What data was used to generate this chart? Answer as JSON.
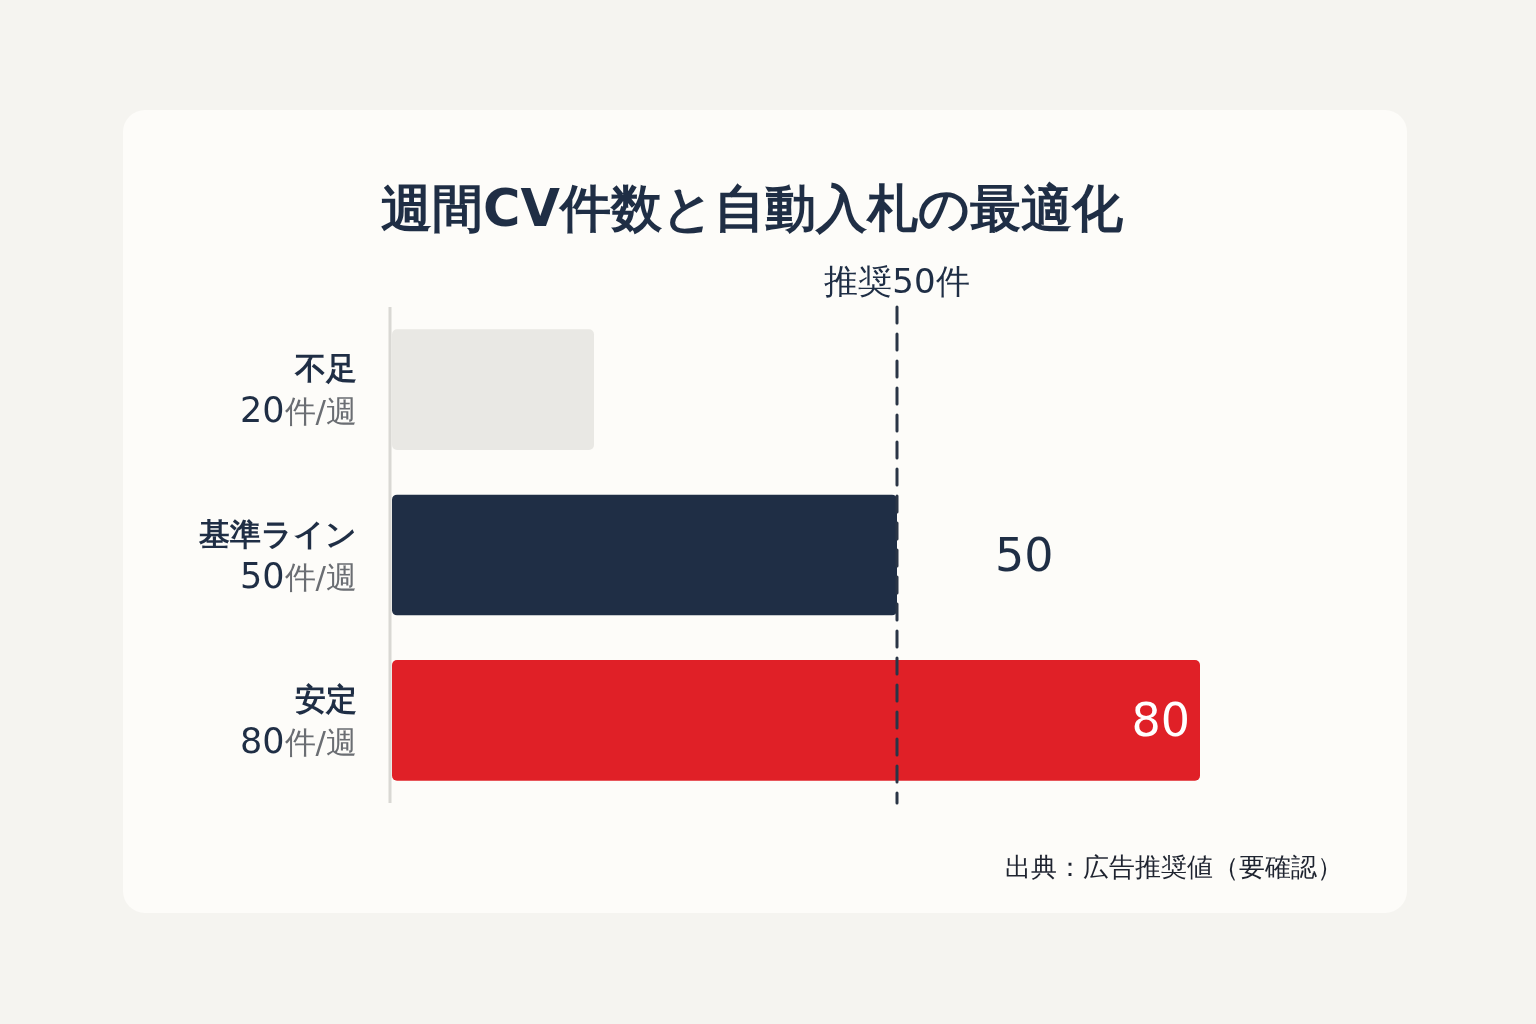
{
  "chart_data": {
    "type": "bar",
    "orientation": "horizontal",
    "title": "週間CV件数と自動入札の最適化",
    "categories": [
      "不足\n20件/週",
      "基準ライン\n50件/週",
      "安定\n80件/週"
    ],
    "values": [
      20,
      50,
      80
    ],
    "colors": [
      "#e9e8e4",
      "#1f2e45",
      "#e02027"
    ],
    "value_labels": [
      null,
      "50",
      "80"
    ],
    "ref_lines": [
      {
        "axis": "x",
        "value": 50,
        "label": "推奨50件",
        "line_style": "dashed",
        "color": "#2a3546"
      }
    ],
    "annotations": [
      "出典：広告推奨値（要確認）"
    ]
  }
}
